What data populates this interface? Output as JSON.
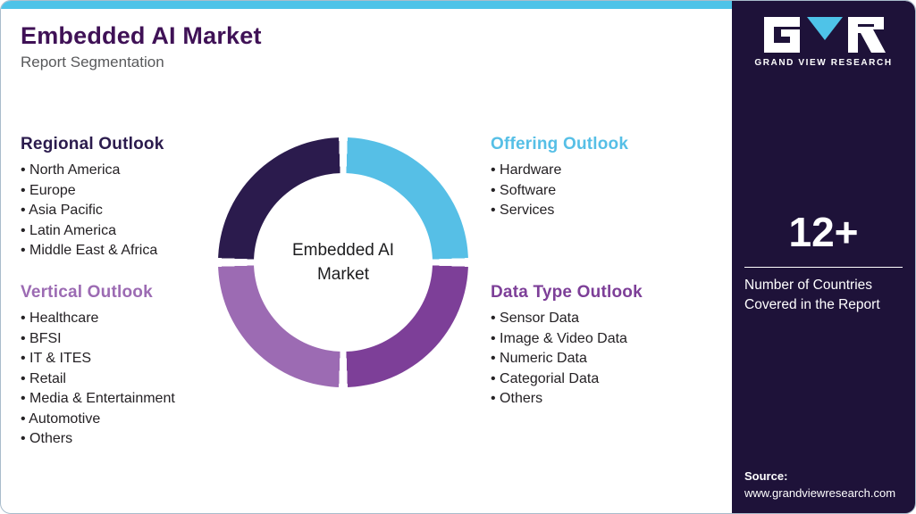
{
  "header": {
    "title": "Embedded AI Market",
    "subtitle": "Report Segmentation",
    "title_color": "#3f1156",
    "accent_bar_color": "#4ec3e8"
  },
  "donut": {
    "center_label": "Embedded AI Market",
    "segments": [
      {
        "label": "Offering Outlook",
        "position": "top-right",
        "color": "#56bfe6"
      },
      {
        "label": "Data Type Outlook",
        "position": "bottom-right",
        "color": "#7d3f98"
      },
      {
        "label": "Vertical Outlook",
        "position": "bottom-left",
        "color": "#9c6bb3"
      },
      {
        "label": "Regional Outlook",
        "position": "top-left",
        "color": "#2b1b4d"
      }
    ]
  },
  "sections": {
    "regional": {
      "title": "Regional Outlook",
      "color": "#2b1b4d",
      "items": [
        "North America",
        "Europe",
        "Asia Pacific",
        "Latin America",
        "Middle East & Africa"
      ]
    },
    "offering": {
      "title": "Offering Outlook",
      "color": "#56bfe6",
      "items": [
        "Hardware",
        "Software",
        "Services"
      ]
    },
    "vertical": {
      "title": "Vertical Outlook",
      "color": "#9c6bb3",
      "items": [
        "Healthcare",
        "BFSI",
        "IT & ITES",
        "Retail",
        "Media & Entertainment",
        "Automotive",
        "Others"
      ]
    },
    "datatype": {
      "title": "Data Type Outlook",
      "color": "#7d3f98",
      "items": [
        "Sensor Data",
        "Image & Video Data",
        "Numeric Data",
        "Categorial Data",
        "Others"
      ]
    }
  },
  "sidebar": {
    "bg_color": "#1e1239",
    "logo_text": "GRAND VIEW RESEARCH",
    "logo_accent_color": "#4ec3e8",
    "stat_value": "12+",
    "stat_label": "Number of Countries Covered in the Report",
    "source_label": "Source:",
    "source_url": "www.grandviewresearch.com"
  }
}
